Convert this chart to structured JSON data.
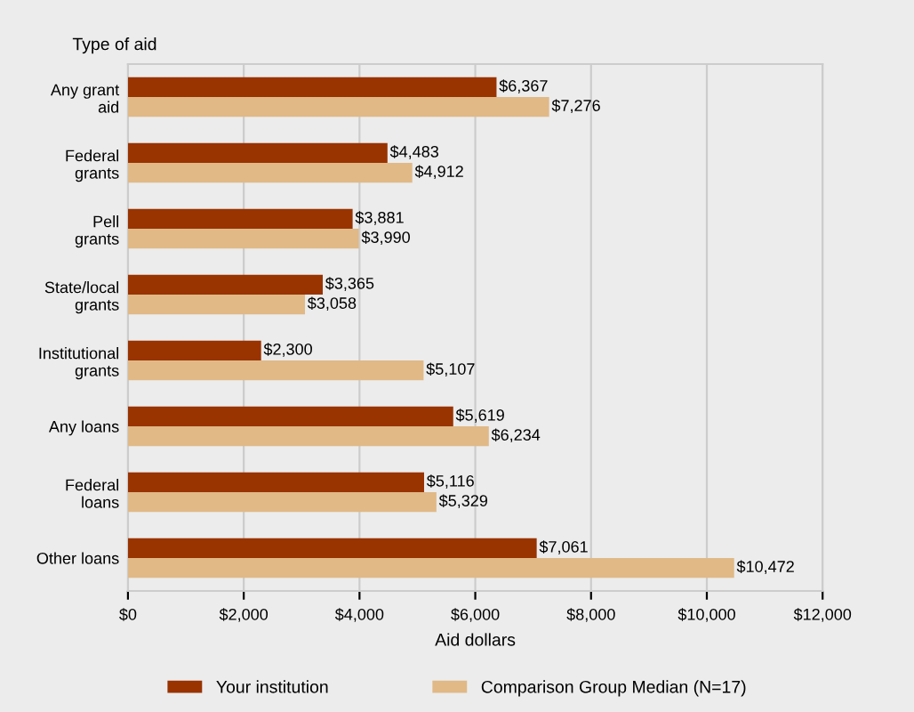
{
  "chart_data": {
    "type": "bar",
    "orientation": "horizontal",
    "ylabel": "Type of aid",
    "xlabel": "Aid dollars",
    "categories": [
      "Any grant\naid",
      "Federal\ngrants",
      "Pell\ngrants",
      "State/local\ngrants",
      "Institutional\ngrants",
      "Any loans",
      "Federal\nloans",
      "Other loans"
    ],
    "series": [
      {
        "name": "Your institution",
        "color": "#993300",
        "values": [
          6367,
          4483,
          3881,
          3365,
          2300,
          5619,
          5116,
          7061
        ],
        "value_labels": [
          "$6,367",
          "$4,483",
          "$3,881",
          "$3,365",
          "$2,300",
          "$5,619",
          "$5,116",
          "$7,061"
        ]
      },
      {
        "name": "Comparison Group Median (N=17)",
        "color": "#e0b987",
        "values": [
          7276,
          4912,
          3990,
          3058,
          5107,
          6234,
          5329,
          10472
        ],
        "value_labels": [
          "$7,276",
          "$4,912",
          "$3,990",
          "$3,058",
          "$5,107",
          "$6,234",
          "$5,329",
          "$10,472"
        ]
      }
    ],
    "xlim": [
      0,
      12000
    ],
    "xticks": [
      {
        "value": 0,
        "label": "$0"
      },
      {
        "value": 2000,
        "label": "$2,000"
      },
      {
        "value": 4000,
        "label": "$4,000"
      },
      {
        "value": 6000,
        "label": "$6,000"
      },
      {
        "value": 8000,
        "label": "$8,000"
      },
      {
        "value": 10000,
        "label": "$10,000"
      },
      {
        "value": 12000,
        "label": "$12,000"
      }
    ],
    "grid": "x",
    "legend": "bottom"
  }
}
